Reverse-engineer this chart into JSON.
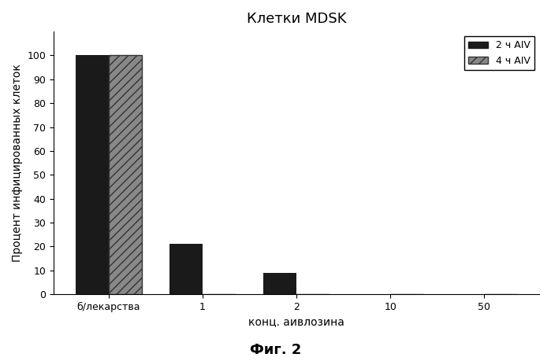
{
  "title": "Клетки MDSK",
  "xlabel": "конц. аивлозина",
  "ylabel": "Процент инфицированных клеток",
  "categories": [
    "б/лекарства",
    "1",
    "2",
    "10",
    "50"
  ],
  "series1_label": "2 ч AIV",
  "series2_label": "4 ч AIV",
  "series1_values": [
    100,
    21,
    9,
    0,
    0
  ],
  "series2_values": [
    100,
    0,
    0,
    0,
    0
  ],
  "ylim": [
    0,
    110
  ],
  "yticks": [
    0,
    10,
    20,
    30,
    40,
    50,
    60,
    70,
    80,
    90,
    100
  ],
  "bar_width": 0.35,
  "color1": "#1a1a1a",
  "color2": "#888888",
  "hatch2": "///",
  "figure_caption": "Фиг. 2",
  "background_color": "#ffffff",
  "title_fontsize": 13,
  "label_fontsize": 10,
  "caption_fontsize": 13
}
